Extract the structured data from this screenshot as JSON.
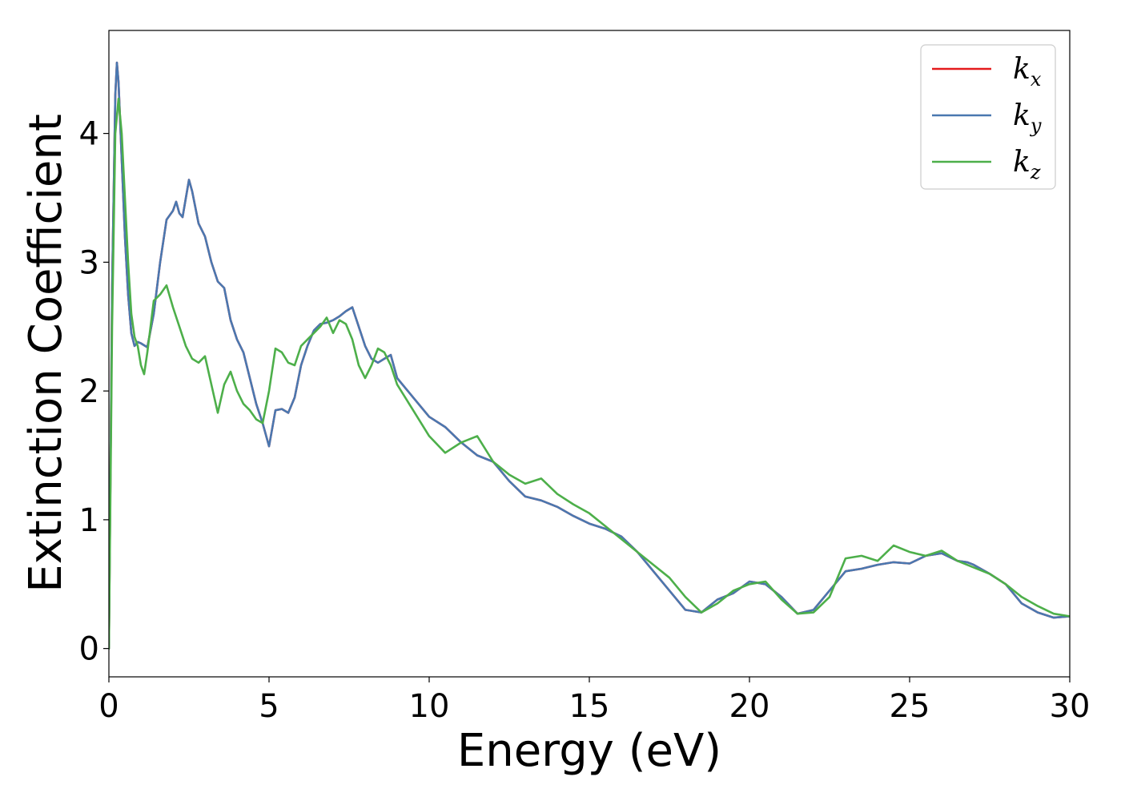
{
  "chart_data": {
    "type": "line",
    "xlabel": "Energy (eV)",
    "ylabel": "Extinction Coefficient",
    "xlim": [
      0,
      30
    ],
    "ylim": [
      -0.22,
      4.8
    ],
    "xticks": [
      0,
      5,
      10,
      15,
      20,
      25,
      30
    ],
    "xtick_labels": [
      "0",
      "5",
      "10",
      "15",
      "20",
      "25",
      "30"
    ],
    "yticks": [
      0,
      1,
      2,
      3,
      4
    ],
    "ytick_labels": [
      "0",
      "1",
      "2",
      "3",
      "4"
    ],
    "grid": false,
    "legend_position": "top-right",
    "series": [
      {
        "name": "k_x",
        "legend_base": "k",
        "legend_sub": "x",
        "color": "#e41a1c",
        "x": [
          0,
          0.1,
          0.2,
          0.25,
          0.3,
          0.4,
          0.5,
          0.6,
          0.7,
          0.8,
          0.9,
          1.0,
          1.2,
          1.4,
          1.6,
          1.8,
          2.0,
          2.1,
          2.2,
          2.3,
          2.5,
          2.6,
          2.8,
          3.0,
          3.2,
          3.4,
          3.6,
          3.8,
          4.0,
          4.2,
          4.4,
          4.6,
          4.8,
          5.0,
          5.2,
          5.4,
          5.6,
          5.8,
          6.0,
          6.2,
          6.4,
          6.6,
          6.8,
          7.0,
          7.2,
          7.4,
          7.6,
          7.8,
          8.0,
          8.2,
          8.4,
          8.6,
          8.8,
          9.0,
          9.5,
          10.0,
          10.5,
          11.0,
          11.5,
          12.0,
          12.5,
          13.0,
          13.5,
          14.0,
          14.5,
          15.0,
          15.5,
          16.0,
          16.5,
          17.0,
          17.5,
          18.0,
          18.5,
          19.0,
          19.5,
          20.0,
          20.5,
          21.0,
          21.5,
          22.0,
          22.5,
          23.0,
          23.5,
          24.0,
          24.5,
          25.0,
          25.5,
          26.0,
          26.5,
          26.8,
          27.0,
          27.5,
          28.0,
          28.5,
          29.0,
          29.5,
          30.0
        ],
        "y": [
          0,
          2.8,
          4.3,
          4.55,
          4.4,
          3.8,
          3.2,
          2.75,
          2.45,
          2.35,
          2.38,
          2.37,
          2.34,
          2.6,
          3.0,
          3.33,
          3.4,
          3.47,
          3.38,
          3.35,
          3.64,
          3.55,
          3.3,
          3.2,
          3.0,
          2.85,
          2.8,
          2.55,
          2.4,
          2.3,
          2.1,
          1.9,
          1.75,
          1.57,
          1.85,
          1.86,
          1.83,
          1.95,
          2.2,
          2.35,
          2.47,
          2.52,
          2.53,
          2.55,
          2.58,
          2.62,
          2.65,
          2.5,
          2.35,
          2.25,
          2.22,
          2.25,
          2.28,
          2.1,
          1.95,
          1.8,
          1.72,
          1.6,
          1.5,
          1.45,
          1.3,
          1.18,
          1.15,
          1.1,
          1.03,
          0.97,
          0.93,
          0.87,
          0.75,
          0.6,
          0.45,
          0.3,
          0.28,
          0.38,
          0.43,
          0.52,
          0.5,
          0.4,
          0.27,
          0.3,
          0.45,
          0.6,
          0.62,
          0.65,
          0.67,
          0.66,
          0.72,
          0.74,
          0.68,
          0.67,
          0.65,
          0.58,
          0.5,
          0.35,
          0.28,
          0.24,
          0.25
        ]
      },
      {
        "name": "k_y",
        "legend_base": "k",
        "legend_sub": "y",
        "color": "#4a78b0",
        "x": [
          0,
          0.1,
          0.2,
          0.25,
          0.3,
          0.4,
          0.5,
          0.6,
          0.7,
          0.8,
          0.9,
          1.0,
          1.2,
          1.4,
          1.6,
          1.8,
          2.0,
          2.1,
          2.2,
          2.3,
          2.5,
          2.6,
          2.8,
          3.0,
          3.2,
          3.4,
          3.6,
          3.8,
          4.0,
          4.2,
          4.4,
          4.6,
          4.8,
          5.0,
          5.2,
          5.4,
          5.6,
          5.8,
          6.0,
          6.2,
          6.4,
          6.6,
          6.8,
          7.0,
          7.2,
          7.4,
          7.6,
          7.8,
          8.0,
          8.2,
          8.4,
          8.6,
          8.8,
          9.0,
          9.5,
          10.0,
          10.5,
          11.0,
          11.5,
          12.0,
          12.5,
          13.0,
          13.5,
          14.0,
          14.5,
          15.0,
          15.5,
          16.0,
          16.5,
          17.0,
          17.5,
          18.0,
          18.5,
          19.0,
          19.5,
          20.0,
          20.5,
          21.0,
          21.5,
          22.0,
          22.5,
          23.0,
          23.5,
          24.0,
          24.5,
          25.0,
          25.5,
          26.0,
          26.5,
          26.8,
          27.0,
          27.5,
          28.0,
          28.5,
          29.0,
          29.5,
          30.0
        ],
        "y": [
          0,
          2.8,
          4.3,
          4.55,
          4.4,
          3.8,
          3.2,
          2.75,
          2.45,
          2.35,
          2.38,
          2.37,
          2.34,
          2.6,
          3.0,
          3.33,
          3.4,
          3.47,
          3.38,
          3.35,
          3.64,
          3.55,
          3.3,
          3.2,
          3.0,
          2.85,
          2.8,
          2.55,
          2.4,
          2.3,
          2.1,
          1.9,
          1.75,
          1.57,
          1.85,
          1.86,
          1.83,
          1.95,
          2.2,
          2.35,
          2.47,
          2.52,
          2.53,
          2.55,
          2.58,
          2.62,
          2.65,
          2.5,
          2.35,
          2.25,
          2.22,
          2.25,
          2.28,
          2.1,
          1.95,
          1.8,
          1.72,
          1.6,
          1.5,
          1.45,
          1.3,
          1.18,
          1.15,
          1.1,
          1.03,
          0.97,
          0.93,
          0.87,
          0.75,
          0.6,
          0.45,
          0.3,
          0.28,
          0.38,
          0.43,
          0.52,
          0.5,
          0.4,
          0.27,
          0.3,
          0.45,
          0.6,
          0.62,
          0.65,
          0.67,
          0.66,
          0.72,
          0.74,
          0.68,
          0.67,
          0.65,
          0.58,
          0.5,
          0.35,
          0.28,
          0.24,
          0.25
        ]
      },
      {
        "name": "k_z",
        "legend_base": "k",
        "legend_sub": "z",
        "color": "#4daf4a",
        "x": [
          0,
          0.1,
          0.2,
          0.3,
          0.4,
          0.5,
          0.6,
          0.7,
          0.8,
          0.9,
          1.0,
          1.1,
          1.2,
          1.4,
          1.6,
          1.8,
          2.0,
          2.2,
          2.4,
          2.6,
          2.8,
          3.0,
          3.2,
          3.4,
          3.6,
          3.8,
          4.0,
          4.2,
          4.4,
          4.6,
          4.8,
          5.0,
          5.2,
          5.4,
          5.6,
          5.8,
          6.0,
          6.2,
          6.4,
          6.6,
          6.8,
          7.0,
          7.2,
          7.4,
          7.6,
          7.8,
          8.0,
          8.2,
          8.4,
          8.6,
          8.8,
          9.0,
          9.5,
          10.0,
          10.5,
          11.0,
          11.5,
          12.0,
          12.5,
          13.0,
          13.5,
          14.0,
          14.5,
          15.0,
          15.5,
          16.0,
          16.5,
          17.0,
          17.5,
          18.0,
          18.5,
          19.0,
          19.5,
          20.0,
          20.5,
          21.0,
          21.5,
          22.0,
          22.5,
          23.0,
          23.5,
          24.0,
          24.5,
          25.0,
          25.5,
          26.0,
          26.5,
          27.0,
          27.5,
          28.0,
          28.5,
          29.0,
          29.5,
          30.0
        ],
        "y": [
          0,
          2.5,
          4.0,
          4.27,
          4.0,
          3.5,
          3.0,
          2.6,
          2.42,
          2.35,
          2.2,
          2.13,
          2.3,
          2.7,
          2.75,
          2.82,
          2.65,
          2.5,
          2.35,
          2.25,
          2.22,
          2.27,
          2.05,
          1.83,
          2.05,
          2.15,
          2.0,
          1.9,
          1.85,
          1.78,
          1.75,
          2.0,
          2.33,
          2.3,
          2.22,
          2.2,
          2.35,
          2.4,
          2.45,
          2.5,
          2.57,
          2.45,
          2.55,
          2.52,
          2.4,
          2.2,
          2.1,
          2.2,
          2.33,
          2.3,
          2.2,
          2.05,
          1.85,
          1.65,
          1.52,
          1.6,
          1.65,
          1.45,
          1.35,
          1.28,
          1.32,
          1.2,
          1.12,
          1.05,
          0.95,
          0.85,
          0.75,
          0.65,
          0.55,
          0.4,
          0.28,
          0.35,
          0.45,
          0.5,
          0.52,
          0.38,
          0.27,
          0.28,
          0.4,
          0.7,
          0.72,
          0.68,
          0.8,
          0.75,
          0.72,
          0.76,
          0.68,
          0.63,
          0.58,
          0.5,
          0.4,
          0.33,
          0.27,
          0.25
        ]
      }
    ]
  }
}
